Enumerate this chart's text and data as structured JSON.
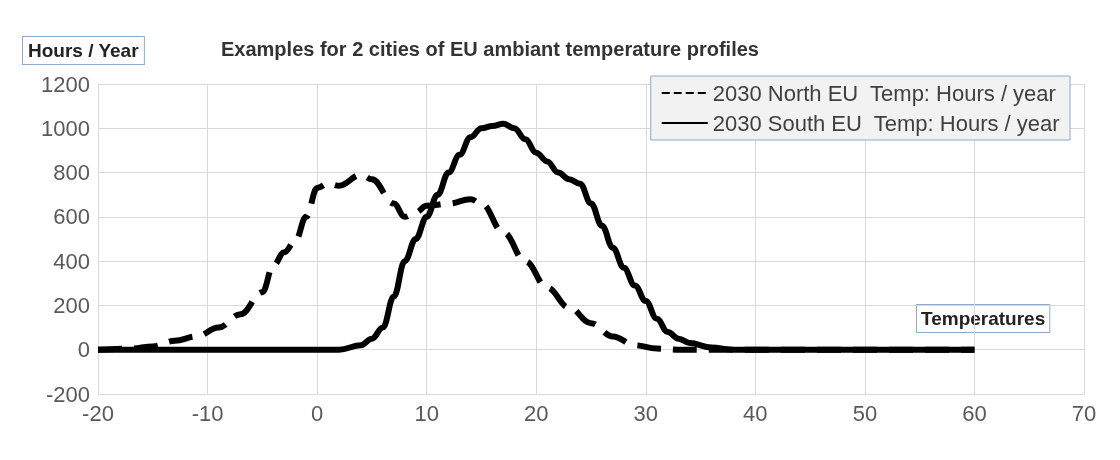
{
  "chart_data": {
    "type": "line",
    "title": "Examples for 2 cities of EU ambiant temperature profiles",
    "ylabel": "Hours / Year",
    "xlabel": "Temperatures",
    "xlim": [
      -20,
      70
    ],
    "xticks": [
      -20,
      -10,
      0,
      10,
      20,
      30,
      40,
      50,
      60,
      70
    ],
    "ylim": [
      -200,
      1200
    ],
    "yticks": [
      -200,
      0,
      200,
      400,
      600,
      800,
      1000,
      1200
    ],
    "grid": true,
    "legend": "top right",
    "marker": "none",
    "series": [
      {
        "name": "2030 North EU  Temp: Hours / year",
        "color": "#000000",
        "line_style": "dashed",
        "x": [
          -20,
          -17,
          -15,
          -13,
          -11,
          -9,
          -7,
          -5,
          -4,
          -3,
          -2,
          -1,
          0,
          1,
          2,
          4,
          5,
          7,
          8,
          9,
          10,
          12,
          14,
          15,
          17,
          19,
          21,
          23,
          25,
          27,
          29,
          31,
          33,
          35,
          60
        ],
        "values": [
          0,
          5,
          15,
          40,
          60,
          100,
          160,
          260,
          380,
          440,
          490,
          600,
          730,
          750,
          740,
          790,
          770,
          660,
          600,
          620,
          650,
          660,
          680,
          660,
          530,
          400,
          280,
          190,
          120,
          60,
          20,
          5,
          0,
          0,
          0
        ]
      },
      {
        "name": "2030 South EU  Temp: Hours / year",
        "color": "#000000",
        "line_style": "solid",
        "x": [
          -20,
          0,
          2,
          4,
          5,
          6,
          7,
          8,
          9,
          10,
          11,
          12,
          13,
          14,
          15,
          16,
          17,
          18,
          19,
          20,
          21,
          22,
          23,
          24,
          25,
          26,
          27,
          28,
          29,
          30,
          31,
          32,
          33,
          34,
          36,
          38,
          60
        ],
        "values": [
          0,
          0,
          0,
          20,
          50,
          100,
          240,
          400,
          500,
          600,
          700,
          800,
          880,
          960,
          1000,
          1010,
          1020,
          1000,
          950,
          890,
          850,
          800,
          770,
          750,
          660,
          560,
          460,
          370,
          290,
          220,
          140,
          80,
          50,
          30,
          10,
          0,
          0
        ]
      }
    ]
  }
}
